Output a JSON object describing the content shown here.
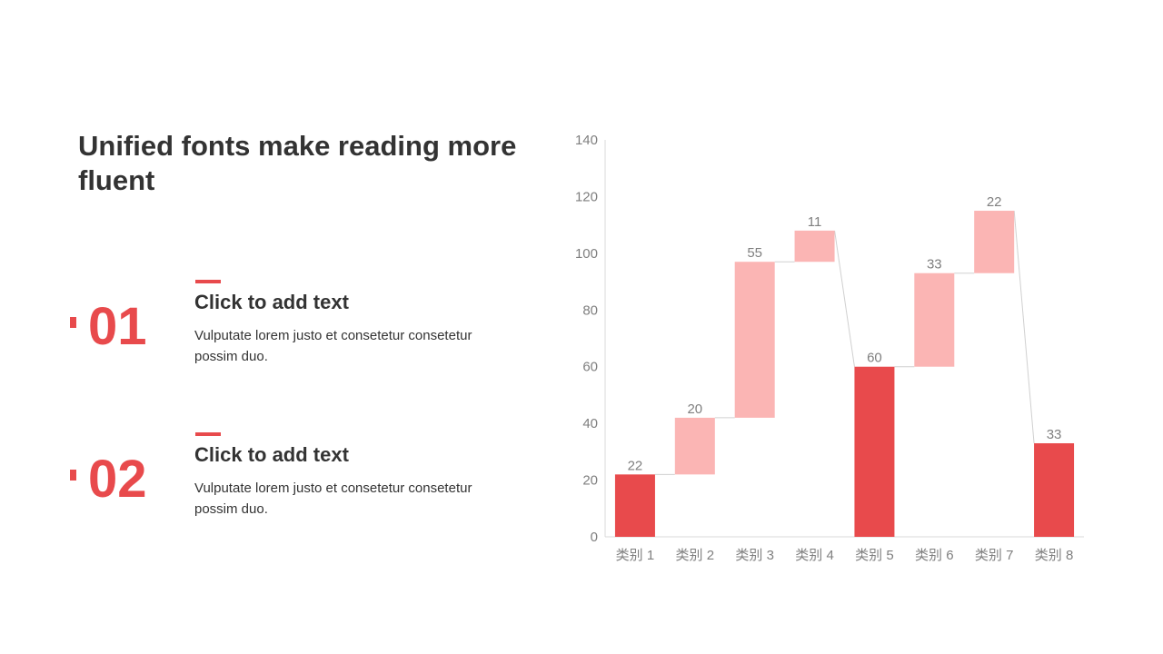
{
  "slide": {
    "title": "Unified fonts make reading more fluent",
    "items": [
      {
        "number": "01",
        "heading": "Click to add text",
        "body": "Vulputate lorem justo et consetetur consetetur possim duo."
      },
      {
        "number": "02",
        "heading": "Click to add text",
        "body": "Vulputate lorem justo et consetetur consetetur possim duo."
      }
    ]
  },
  "colors": {
    "accent": "#e84a4c",
    "delta": "#fbb5b4",
    "text": "#333333",
    "axis_text": "#7f7f7f"
  },
  "chart_data": {
    "type": "bar",
    "subtype": "waterfall",
    "categories": [
      "类别 1",
      "类别 2",
      "类别 3",
      "类别 4",
      "类别 5",
      "类别 6",
      "类别 7",
      "类别 8"
    ],
    "values": [
      22,
      20,
      55,
      11,
      60,
      33,
      22,
      33
    ],
    "bar_kind": [
      "total",
      "delta",
      "delta",
      "delta",
      "total",
      "delta",
      "delta",
      "total"
    ],
    "ylim": [
      0,
      140
    ],
    "yticks": [
      0,
      20,
      40,
      60,
      80,
      100,
      120,
      140
    ],
    "grid": false,
    "legend": "none",
    "title": "",
    "xlabel": "",
    "ylabel": ""
  }
}
